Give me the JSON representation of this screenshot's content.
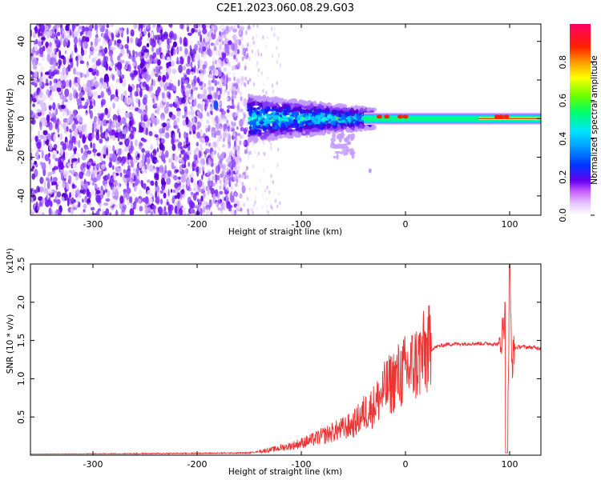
{
  "title": "C2E1.2023.060.08.29.G03",
  "chart_data": [
    {
      "type": "heatmap",
      "xlabel": "Height of straight line (km)",
      "ylabel": "Frequency (Hz)",
      "xlim": [
        -360,
        130
      ],
      "ylim": [
        -50,
        49
      ],
      "x_ticks": [
        -300,
        -200,
        -100,
        0,
        100
      ],
      "y_ticks": [
        -40,
        -20,
        0,
        20,
        40
      ],
      "colorbar": {
        "label": "Normalized spectral amplitude",
        "range": [
          0,
          1
        ],
        "ticks": [
          "0.0",
          "0.2",
          "0.4",
          "0.6",
          "0.8"
        ],
        "colormap": [
          "#ffffff",
          "#cc66ff",
          "#6600ee",
          "#0033ff",
          "#00e5ff",
          "#00ff66",
          "#ffff00",
          "#ff9900",
          "#ff0000",
          "#ff0066"
        ]
      },
      "features": [
        {
          "x_range": [
            -360,
            -150
          ],
          "freq_range": [
            -50,
            49
          ],
          "description_level": 0.12
        },
        {
          "x_range": [
            -150,
            -30
          ],
          "freq_range": [
            -20,
            12
          ],
          "description_level": 0.35
        },
        {
          "x_range": [
            -30,
            130
          ],
          "freq_range": [
            -3,
            3
          ],
          "description_level": 0.45
        }
      ]
    },
    {
      "type": "line",
      "xlabel": "Height of straight line (km)",
      "ylabel": "SNR (10 * v/v)",
      "y_multiplier": "(x10⁴)",
      "xlim": [
        -360,
        130
      ],
      "ylim": [
        0,
        25000
      ],
      "x_ticks": [
        -300,
        -200,
        -100,
        0,
        100
      ],
      "y_ticks": [
        0.5,
        1.0,
        1.5,
        2.0,
        2.5
      ],
      "y_tick_labels": [
        "0.5",
        "1.0",
        "1.5",
        "2.0",
        "2.5"
      ],
      "color": "#ee3333",
      "series": [
        {
          "x": [
            -360,
            -300,
            -250,
            -200,
            -150,
            -130,
            -110,
            -90,
            -70,
            -50,
            -40,
            -30,
            -20,
            -10,
            0,
            10,
            20,
            30,
            40,
            60,
            80,
            90,
            95,
            98,
            100,
            102,
            105,
            110,
            130
          ],
          "y": [
            100,
            150,
            200,
            250,
            300,
            700,
            1200,
            2000,
            3000,
            4000,
            5500,
            6500,
            8500,
            10000,
            11000,
            12000,
            13500,
            14200,
            14500,
            14600,
            14600,
            14500,
            17000,
            300,
            24800,
            12000,
            14000,
            14200,
            14000
          ]
        }
      ]
    }
  ]
}
